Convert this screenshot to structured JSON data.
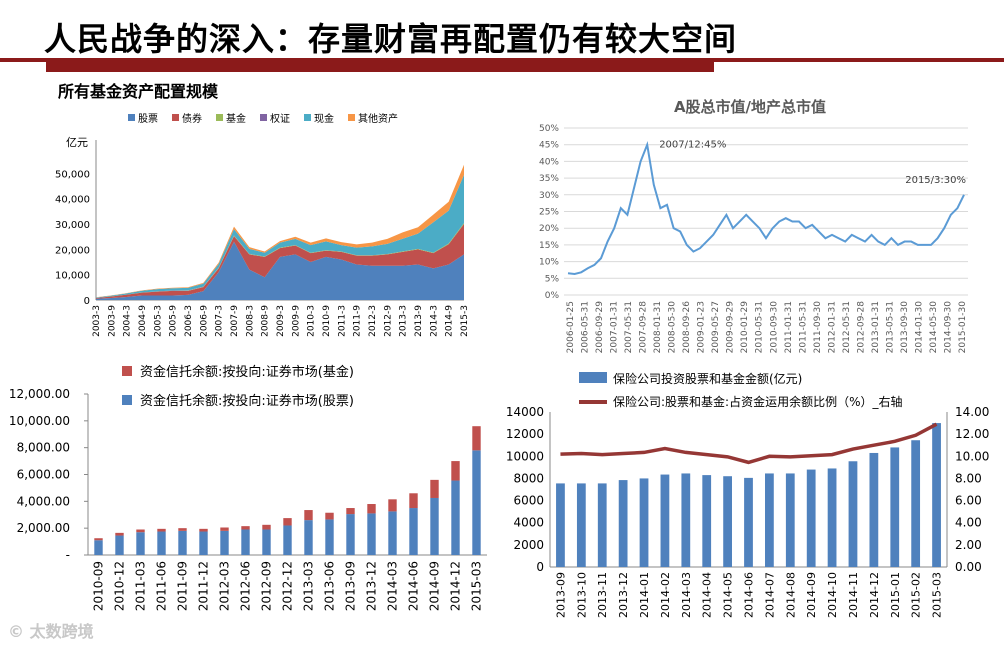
{
  "slide": {
    "title": "人民战争的深入：存量财富再配置仍有较大空间",
    "watermark": "太数跨境"
  },
  "chart_data": [
    {
      "id": "fund-allocation",
      "type": "area",
      "title": "所有基金资产配置规模",
      "ylabel": "亿元",
      "ylim": [
        0,
        60000
      ],
      "yticks": [
        0,
        10000,
        20000,
        30000,
        40000,
        50000
      ],
      "ytick_labels": [
        "0",
        "10,000",
        "20,000",
        "30,000",
        "40,000",
        "50,000"
      ],
      "categories": [
        "2003-3",
        "2003-9",
        "2004-3",
        "2004-9",
        "2005-3",
        "2005-9",
        "2006-3",
        "2006-9",
        "2007-3",
        "2007-9",
        "2008-3",
        "2008-9",
        "2009-3",
        "2009-9",
        "2010-3",
        "2010-9",
        "2011-3",
        "2011-9",
        "2012-3",
        "2012-9",
        "2013-3",
        "2013-9",
        "2014-3",
        "2014-9",
        "2015-3"
      ],
      "series": [
        {
          "name": "股票",
          "color": "#4f81bd",
          "values": [
            500,
            800,
            1200,
            1800,
            1800,
            1800,
            2000,
            3500,
            11000,
            23000,
            12000,
            9000,
            17000,
            18000,
            15000,
            17000,
            16000,
            14000,
            13500,
            13500,
            13500,
            14000,
            12500,
            14000,
            18000
          ]
        },
        {
          "name": "债券",
          "color": "#c0504d",
          "values": [
            300,
            600,
            900,
            1100,
            1500,
            1800,
            1600,
            1600,
            1500,
            2200,
            6000,
            8000,
            3500,
            3500,
            3500,
            2500,
            3000,
            3500,
            4000,
            4500,
            5500,
            6000,
            6000,
            8000,
            12000
          ]
        },
        {
          "name": "基金",
          "color": "#9bbb59",
          "values": [
            10,
            20,
            30,
            50,
            60,
            70,
            80,
            100,
            150,
            200,
            150,
            150,
            150,
            150,
            150,
            150,
            150,
            150,
            150,
            150,
            200,
            200,
            200,
            300,
            400
          ]
        },
        {
          "name": "权证",
          "color": "#8064a2",
          "values": [
            0,
            0,
            0,
            0,
            50,
            80,
            100,
            80,
            80,
            60,
            30,
            0,
            0,
            0,
            0,
            0,
            0,
            0,
            0,
            0,
            0,
            0,
            0,
            0,
            0
          ]
        },
        {
          "name": "现金",
          "color": "#4bacc6",
          "values": [
            200,
            300,
            500,
            700,
            900,
            900,
            1000,
            1200,
            1500,
            2500,
            2000,
            1500,
            2000,
            2500,
            3000,
            3500,
            2500,
            3000,
            3500,
            4000,
            5000,
            6000,
            12000,
            13000,
            19000
          ]
        },
        {
          "name": "其他资产",
          "color": "#f79646",
          "values": [
            100,
            100,
            100,
            150,
            200,
            200,
            250,
            300,
            500,
            1000,
            700,
            500,
            600,
            800,
            1000,
            1200,
            1200,
            1300,
            1500,
            2000,
            2500,
            2500,
            3000,
            3500,
            4000
          ]
        }
      ]
    },
    {
      "id": "a-share-gdp",
      "type": "line",
      "title": "A股总市值/地产总市值",
      "ylim": [
        0,
        50
      ],
      "yticks": [
        0,
        5,
        10,
        15,
        20,
        25,
        30,
        35,
        40,
        45,
        50
      ],
      "ytick_labels": [
        "0%",
        "5%",
        "10%",
        "15%",
        "20%",
        "25%",
        "30%",
        "35%",
        "40%",
        "45%",
        "50%"
      ],
      "color": "#5b9bd5",
      "xlabels": [
        "2006-01-25",
        "2006-05-31",
        "2006-09-29",
        "2007-01-31",
        "2007-05-31",
        "2007-09-28",
        "2008-01-31",
        "2008-05-30",
        "2008-09-26",
        "2009-01-23",
        "2009-05-27",
        "2009-09-29",
        "2010-01-29",
        "2010-05-31",
        "2010-09-30",
        "2011-01-31",
        "2011-05-31",
        "2011-09-30",
        "2012-01-31",
        "2012-05-31",
        "2012-09-28",
        "2013-01-31",
        "2013-05-31",
        "2013-09-30",
        "2014-01-30",
        "2014-05-30",
        "2014-09-30",
        "2015-01-30"
      ],
      "values": [
        6.5,
        6.3,
        6.8,
        8,
        9,
        11,
        16,
        20,
        26,
        24,
        32,
        40,
        45,
        33,
        26,
        27,
        20,
        19,
        15,
        13,
        14,
        16,
        18,
        21,
        24,
        20,
        22,
        24,
        22,
        20,
        17,
        20,
        22,
        23,
        22,
        22,
        20,
        21,
        19,
        17,
        18,
        17,
        16,
        18,
        17,
        16,
        18,
        16,
        15,
        17,
        15,
        16,
        16,
        15,
        15,
        15,
        17,
        20,
        24,
        26,
        30
      ],
      "annotations": [
        {
          "text": "2007/12:45%",
          "index": 12
        },
        {
          "text": "2015/3:30%",
          "index": 60
        }
      ]
    },
    {
      "id": "trust-balance",
      "type": "bar",
      "stacked": true,
      "ylim": [
        0,
        12000
      ],
      "yticks": [
        0,
        2000,
        4000,
        6000,
        8000,
        10000,
        12000
      ],
      "ytick_labels": [
        "-",
        "2,000.00",
        "4,000.00",
        "6,000.00",
        "8,000.00",
        "10,000.00",
        "12,000.00"
      ],
      "categories": [
        "2010-09",
        "2010-12",
        "2011-03",
        "2011-06",
        "2011-09",
        "2011-12",
        "2012-03",
        "2012-06",
        "2012-09",
        "2012-12",
        "2013-03",
        "2013-06",
        "2013-09",
        "2013-12",
        "2014-03",
        "2014-06",
        "2014-09",
        "2014-12",
        "2015-03"
      ],
      "series": [
        {
          "name": "资金信托余额:按投向:证券市场(股票)",
          "color": "#4f81bd",
          "values": [
            1100,
            1450,
            1700,
            1750,
            1800,
            1750,
            1800,
            1900,
            1900,
            2200,
            2600,
            2650,
            3050,
            3100,
            3250,
            3500,
            4250,
            5550,
            7800
          ]
        },
        {
          "name": "资金信托余额:按投向:证券市场(基金)",
          "color": "#c0504d",
          "values": [
            150,
            200,
            200,
            200,
            200,
            200,
            250,
            250,
            350,
            550,
            750,
            500,
            450,
            700,
            900,
            1100,
            1350,
            1450,
            1800
          ]
        }
      ]
    },
    {
      "id": "insurance",
      "type": "bar",
      "ylim": [
        0,
        14000
      ],
      "yticks": [
        0,
        2000,
        4000,
        6000,
        8000,
        10000,
        12000,
        14000
      ],
      "ytick_labels": [
        "0",
        "2000",
        "4000",
        "6000",
        "8000",
        "10000",
        "12000",
        "14000"
      ],
      "y2lim": [
        0,
        14
      ],
      "y2ticks": [
        0,
        2,
        4,
        6,
        8,
        10,
        12,
        14
      ],
      "y2tick_labels": [
        "0.00",
        "2.00",
        "4.00",
        "6.00",
        "8.00",
        "10.00",
        "12.00",
        "14.00"
      ],
      "categories": [
        "2013-09",
        "2013-10",
        "2013-11",
        "2013-12",
        "2014-01",
        "2014-02",
        "2014-03",
        "2014-04",
        "2014-05",
        "2014-06",
        "2014-07",
        "2014-08",
        "2014-09",
        "2014-10",
        "2014-11",
        "2014-12",
        "2015-01",
        "2015-02",
        "2015-03"
      ],
      "series": [
        {
          "name": "保险公司投资股票和基金金额(亿元)",
          "type": "bar",
          "axis": "left",
          "color": "#4f81bd",
          "values": [
            7550,
            7550,
            7550,
            7850,
            8000,
            8350,
            8450,
            8300,
            8200,
            8050,
            8450,
            8450,
            8800,
            8900,
            9550,
            10300,
            10800,
            11450,
            13000
          ]
        },
        {
          "name": "保险公司:股票和基金:占资金运用余额比例（%）_右轴",
          "type": "line",
          "axis": "right",
          "color": "#953735",
          "values": [
            10.2,
            10.25,
            10.15,
            10.25,
            10.35,
            10.7,
            10.35,
            10.15,
            9.95,
            9.45,
            10.0,
            9.95,
            10.05,
            10.15,
            10.65,
            11.0,
            11.35,
            11.9,
            12.9
          ]
        }
      ]
    }
  ]
}
